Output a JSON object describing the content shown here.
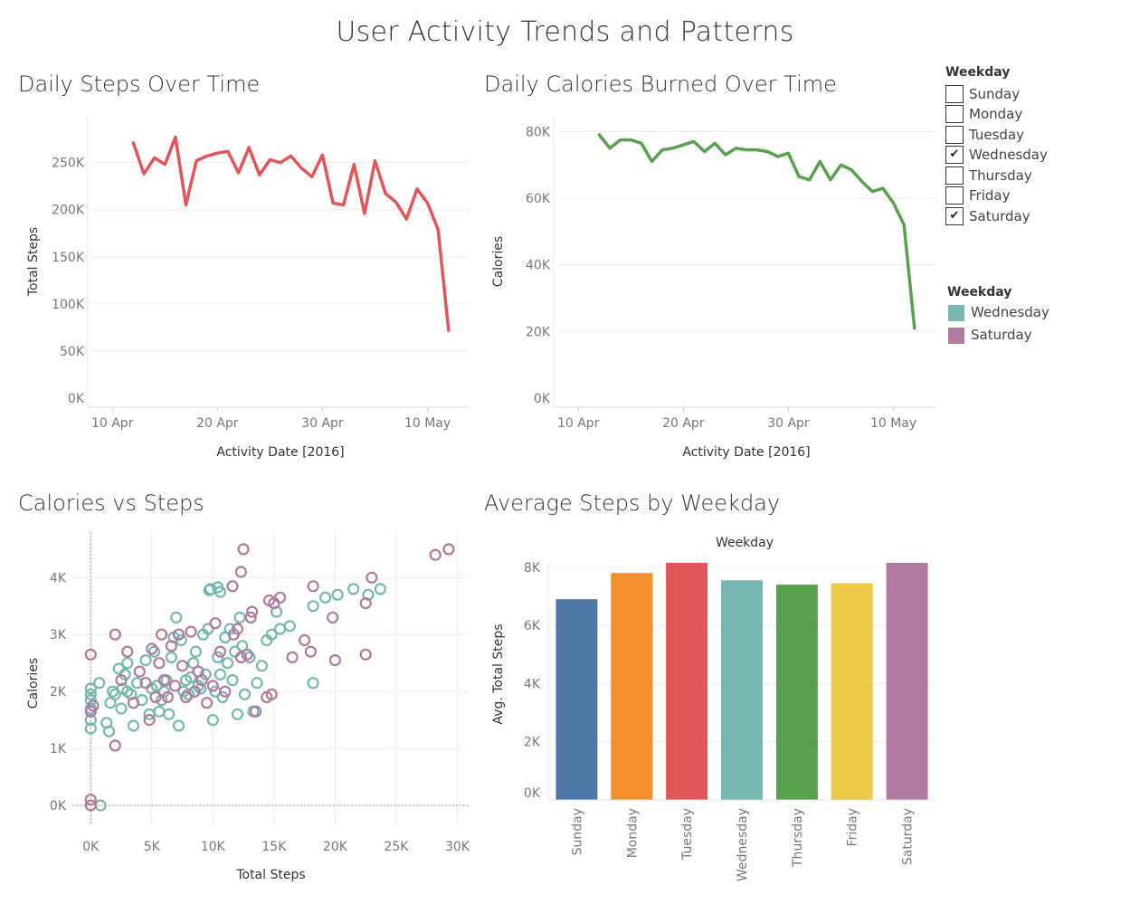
{
  "dashboard_title": "User Activity Trends and Patterns",
  "colors": {
    "steps_line": "#e15759",
    "calories_line": "#59a14f",
    "wednesday": "#76b7b2",
    "saturday": "#b07aa1",
    "weekday_bars": [
      "#4e79a7",
      "#f28e2b",
      "#e15759",
      "#76b7b2",
      "#59a14f",
      "#edc948",
      "#b07aa1"
    ]
  },
  "filter": {
    "title": "Weekday",
    "items": [
      {
        "label": "Sunday",
        "checked": false
      },
      {
        "label": "Monday",
        "checked": false
      },
      {
        "label": "Tuesday",
        "checked": false
      },
      {
        "label": "Wednesday",
        "checked": true
      },
      {
        "label": "Thursday",
        "checked": false
      },
      {
        "label": "Friday",
        "checked": false
      },
      {
        "label": "Saturday",
        "checked": true
      }
    ]
  },
  "color_legend": {
    "title": "Weekday",
    "items": [
      {
        "label": "Wednesday",
        "color": "#76b7b2"
      },
      {
        "label": "Saturday",
        "color": "#b07aa1"
      }
    ]
  },
  "chart_data": [
    {
      "id": "steps",
      "type": "line",
      "title": "Daily Steps Over Time",
      "xlabel": "Activity Date [2016]",
      "ylabel": "Total Steps",
      "x_ticks": [
        "10 Apr",
        "20 Apr",
        "30 Apr",
        "10 May"
      ],
      "y_ticks": [
        "0K",
        "50K",
        "100K",
        "150K",
        "200K",
        "250K"
      ],
      "x_tick_dates": [
        "2016-04-10",
        "2016-04-20",
        "2016-04-30",
        "2016-05-10"
      ],
      "y_tick_values": [
        0,
        50000,
        100000,
        150000,
        200000,
        250000
      ],
      "xlim": [
        "2016-04-08",
        "2016-05-14"
      ],
      "ylim": [
        0,
        290000
      ],
      "grid": true,
      "series": [
        {
          "dates": [
            "2016-04-12",
            "2016-04-13",
            "2016-04-14",
            "2016-04-15",
            "2016-04-16",
            "2016-04-17",
            "2016-04-18",
            "2016-04-19",
            "2016-04-20",
            "2016-04-21",
            "2016-04-22",
            "2016-04-23",
            "2016-04-24",
            "2016-04-25",
            "2016-04-26",
            "2016-04-27",
            "2016-04-28",
            "2016-04-29",
            "2016-04-30",
            "2016-05-01",
            "2016-05-02",
            "2016-05-03",
            "2016-05-04",
            "2016-05-05",
            "2016-05-06",
            "2016-05-07",
            "2016-05-08",
            "2016-05-09",
            "2016-05-10",
            "2016-05-11",
            "2016-05-12"
          ],
          "values": [
            271000,
            238000,
            255000,
            248000,
            277000,
            205000,
            252000,
            257000,
            260000,
            262000,
            239000,
            266000,
            237000,
            253000,
            250000,
            257000,
            244000,
            235000,
            258000,
            207000,
            205000,
            248000,
            196000,
            252000,
            217000,
            208000,
            190000,
            222000,
            207000,
            179000,
            72000
          ]
        }
      ]
    },
    {
      "id": "calories",
      "type": "line",
      "title": "Daily Calories Burned Over Time",
      "xlabel": "Activity Date [2016]",
      "ylabel": "Calories",
      "x_ticks": [
        "10 Apr",
        "20 Apr",
        "30 Apr",
        "10 May"
      ],
      "y_ticks": [
        "0K",
        "20K",
        "40K",
        "60K",
        "80K"
      ],
      "x_tick_dates": [
        "2016-04-10",
        "2016-04-20",
        "2016-04-30",
        "2016-05-10"
      ],
      "y_tick_values": [
        0,
        20000,
        40000,
        60000,
        80000
      ],
      "xlim": [
        "2016-04-08",
        "2016-05-14"
      ],
      "ylim": [
        0,
        82000
      ],
      "grid": true,
      "series": [
        {
          "dates": [
            "2016-04-12",
            "2016-04-13",
            "2016-04-14",
            "2016-04-15",
            "2016-04-16",
            "2016-04-17",
            "2016-04-18",
            "2016-04-19",
            "2016-04-20",
            "2016-04-21",
            "2016-04-22",
            "2016-04-23",
            "2016-04-24",
            "2016-04-25",
            "2016-04-26",
            "2016-04-27",
            "2016-04-28",
            "2016-04-29",
            "2016-04-30",
            "2016-05-01",
            "2016-05-02",
            "2016-05-03",
            "2016-05-04",
            "2016-05-05",
            "2016-05-06",
            "2016-05-07",
            "2016-05-08",
            "2016-05-09",
            "2016-05-10",
            "2016-05-11",
            "2016-05-12"
          ],
          "values": [
            79000,
            75000,
            77500,
            77500,
            76500,
            71000,
            74500,
            75000,
            76000,
            77000,
            74000,
            76500,
            73000,
            75000,
            74500,
            74500,
            74000,
            72500,
            73500,
            66500,
            65500,
            71000,
            65500,
            70000,
            68500,
            65000,
            62000,
            63000,
            58500,
            52000,
            21000
          ]
        }
      ]
    },
    {
      "id": "scatter",
      "type": "scatter",
      "title": "Calories vs Steps",
      "xlabel": "Total Steps",
      "ylabel": "Calories",
      "x_ticks": [
        "0K",
        "5K",
        "10K",
        "15K",
        "20K",
        "25K",
        "30K"
      ],
      "y_ticks": [
        "0K",
        "1K",
        "2K",
        "3K",
        "4K"
      ],
      "x_tick_values": [
        0,
        5000,
        10000,
        15000,
        20000,
        25000,
        30000
      ],
      "y_tick_values": [
        0,
        1000,
        2000,
        3000,
        4000
      ],
      "xlim": [
        -1500,
        31000
      ],
      "ylim": [
        -350,
        4800
      ],
      "grid": true,
      "series": [
        {
          "name": "Wednesday",
          "points": [
            [
              0,
              1350
            ],
            [
              0,
              1500
            ],
            [
              0,
              1700
            ],
            [
              0,
              1850
            ],
            [
              0,
              1950
            ],
            [
              0,
              2050
            ],
            [
              700,
              2150
            ],
            [
              800,
              0
            ],
            [
              1300,
              1450
            ],
            [
              1500,
              1300
            ],
            [
              1600,
              1800
            ],
            [
              1800,
              2000
            ],
            [
              2000,
              1950
            ],
            [
              2300,
              2400
            ],
            [
              2500,
              1700
            ],
            [
              2600,
              2050
            ],
            [
              2800,
              2300
            ],
            [
              3000,
              2500
            ],
            [
              3000,
              2000
            ],
            [
              3300,
              1950
            ],
            [
              3500,
              1400
            ],
            [
              3800,
              2150
            ],
            [
              4200,
              1850
            ],
            [
              4500,
              2550
            ],
            [
              4800,
              1600
            ],
            [
              5000,
              2050
            ],
            [
              5200,
              2700
            ],
            [
              5400,
              2100
            ],
            [
              5600,
              1650
            ],
            [
              5800,
              1850
            ],
            [
              6000,
              2000
            ],
            [
              6200,
              2200
            ],
            [
              6400,
              1600
            ],
            [
              6600,
              2600
            ],
            [
              6800,
              2950
            ],
            [
              7000,
              3300
            ],
            [
              7200,
              1400
            ],
            [
              7400,
              2900
            ],
            [
              7600,
              2000
            ],
            [
              7800,
              2200
            ],
            [
              8000,
              1950
            ],
            [
              8200,
              2250
            ],
            [
              8400,
              2500
            ],
            [
              8600,
              2700
            ],
            [
              8800,
              2100
            ],
            [
              9000,
              2050
            ],
            [
              9200,
              3000
            ],
            [
              9400,
              2300
            ],
            [
              9600,
              3100
            ],
            [
              9800,
              3800
            ],
            [
              10000,
              1500
            ],
            [
              10200,
              2000
            ],
            [
              10400,
              2600
            ],
            [
              10600,
              2300
            ],
            [
              10800,
              1900
            ],
            [
              11000,
              2950
            ],
            [
              11200,
              2500
            ],
            [
              11400,
              3100
            ],
            [
              11600,
              2200
            ],
            [
              11800,
              2700
            ],
            [
              12000,
              1600
            ],
            [
              12200,
              3300
            ],
            [
              12400,
              2800
            ],
            [
              12600,
              1950
            ],
            [
              13000,
              2600
            ],
            [
              13300,
              1650
            ],
            [
              13600,
              2150
            ],
            [
              14000,
              2450
            ],
            [
              14400,
              2900
            ],
            [
              14800,
              3000
            ],
            [
              15200,
              3400
            ],
            [
              15500,
              3100
            ],
            [
              16300,
              3150
            ],
            [
              18200,
              3500
            ],
            [
              18200,
              2150
            ],
            [
              19200,
              3650
            ],
            [
              20200,
              3700
            ],
            [
              21500,
              3800
            ],
            [
              22700,
              3700
            ],
            [
              23700,
              3800
            ],
            [
              9700,
              3780
            ],
            [
              10600,
              3750
            ],
            [
              10400,
              3830
            ]
          ]
        },
        {
          "name": "Saturday",
          "points": [
            [
              0,
              2650
            ],
            [
              0,
              100
            ],
            [
              0,
              0
            ],
            [
              0,
              1650
            ],
            [
              200,
              1750
            ],
            [
              2000,
              1050
            ],
            [
              2000,
              3000
            ],
            [
              2500,
              2200
            ],
            [
              3000,
              2700
            ],
            [
              3500,
              1800
            ],
            [
              4000,
              2350
            ],
            [
              4500,
              2150
            ],
            [
              4800,
              1500
            ],
            [
              5000,
              2750
            ],
            [
              5300,
              1900
            ],
            [
              5600,
              2500
            ],
            [
              5800,
              3000
            ],
            [
              6000,
              2200
            ],
            [
              6300,
              1900
            ],
            [
              6600,
              2800
            ],
            [
              6900,
              2100
            ],
            [
              7200,
              3000
            ],
            [
              7500,
              2450
            ],
            [
              7800,
              1900
            ],
            [
              8200,
              3050
            ],
            [
              8500,
              2000
            ],
            [
              8800,
              2350
            ],
            [
              9100,
              2200
            ],
            [
              9500,
              1800
            ],
            [
              10000,
              2100
            ],
            [
              10200,
              3200
            ],
            [
              10600,
              2700
            ],
            [
              11000,
              2000
            ],
            [
              11600,
              3850
            ],
            [
              12000,
              3100
            ],
            [
              12300,
              4100
            ],
            [
              12500,
              4500
            ],
            [
              12800,
              2650
            ],
            [
              13200,
              3400
            ],
            [
              14400,
              1900
            ],
            [
              14600,
              3600
            ],
            [
              15000,
              3550
            ],
            [
              15500,
              3650
            ],
            [
              16500,
              2600
            ],
            [
              17500,
              2900
            ],
            [
              18000,
              2700
            ],
            [
              18200,
              3850
            ],
            [
              19800,
              3300
            ],
            [
              20000,
              2550
            ],
            [
              22500,
              3550
            ],
            [
              22500,
              2650
            ],
            [
              23000,
              4000
            ],
            [
              28200,
              4400
            ],
            [
              29300,
              4500
            ],
            [
              13500,
              1650
            ],
            [
              11700,
              3000
            ],
            [
              12300,
              2600
            ],
            [
              13100,
              3300
            ],
            [
              14800,
              1950
            ]
          ]
        }
      ]
    },
    {
      "id": "weekday",
      "type": "bar",
      "title": "Average Steps by Weekday",
      "header": "Weekday",
      "ylabel": "Avg. Total Steps",
      "categories": [
        "Sunday",
        "Monday",
        "Tuesday",
        "Wednesday",
        "Thursday",
        "Friday",
        "Saturday"
      ],
      "values": [
        6900,
        7800,
        8150,
        7550,
        7400,
        7450,
        8150
      ],
      "y_ticks": [
        "0K",
        "2K",
        "4K",
        "6K",
        "8K"
      ],
      "y_tick_values": [
        0,
        2000,
        4000,
        6000,
        8000
      ],
      "ylim": [
        0,
        8150
      ],
      "grid": true
    }
  ]
}
